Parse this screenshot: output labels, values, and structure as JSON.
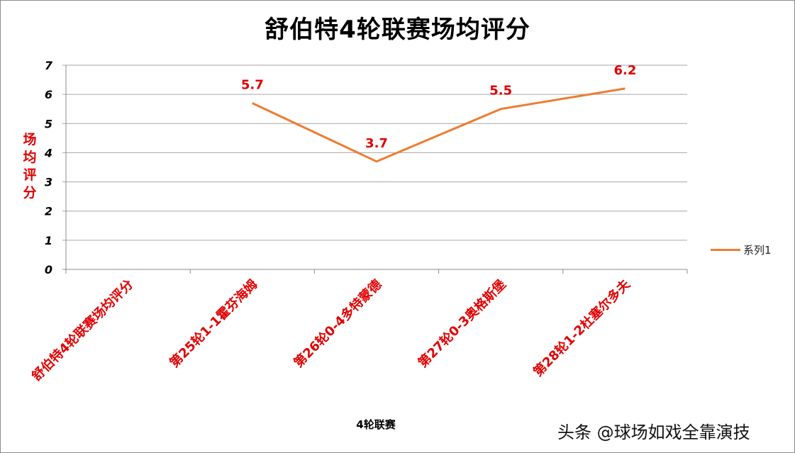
{
  "chart_data": {
    "type": "line",
    "title": "舒伯特4轮联赛场均评分",
    "xlabel": "4轮联赛",
    "ylabel": "场均评分",
    "categories": [
      "舒伯特4轮联赛场均评分",
      "第25轮1-1霍芬海姆",
      "第26轮0-4多特蒙德",
      "第27轮0-3奥格斯堡",
      "第28轮1-2杜塞尔多夫"
    ],
    "series": [
      {
        "name": "系列1",
        "values": [
          null,
          5.7,
          3.7,
          5.5,
          6.2
        ],
        "color": "#ed7d31"
      }
    ],
    "data_labels": [
      "",
      "5.7",
      "3.7",
      "5.5",
      "6.2"
    ],
    "ylim": [
      0,
      7
    ],
    "yticks": [
      "0",
      "1",
      "2",
      "3",
      "4",
      "5",
      "6",
      "7"
    ],
    "grid": true,
    "legend_position": "right"
  },
  "title": "舒伯特4轮联赛场均评分",
  "ylabel_chars": [
    "场",
    "均",
    "评",
    "分"
  ],
  "xlabel": "4轮联赛",
  "legend": {
    "label": "系列1"
  },
  "watermark": "头条 @球场如戏全靠演技",
  "colors": {
    "line": "#ed7d31",
    "label_red": "#e00000",
    "grid": "#a6a6a6"
  }
}
